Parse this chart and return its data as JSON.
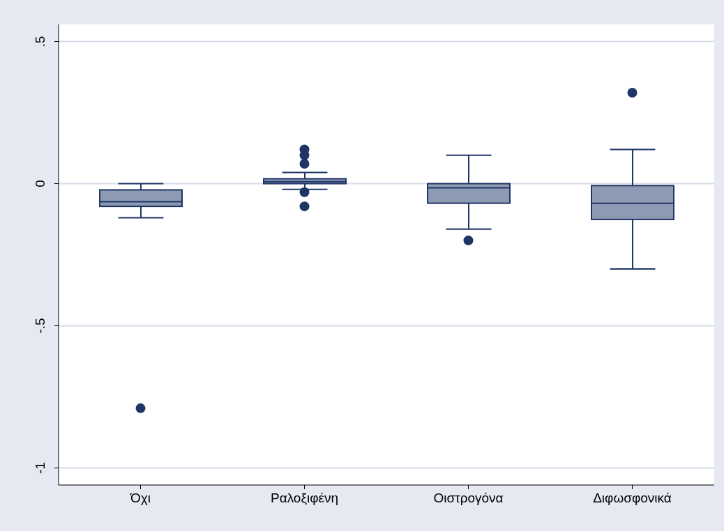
{
  "chart_data": {
    "type": "box",
    "categories": [
      "Όχι",
      "Ραλοξιφένη",
      "Οιστρογόνα",
      "Διφωσφονικά"
    ],
    "boxes": [
      {
        "low": -0.12,
        "q1": -0.08,
        "median": -0.064,
        "q3": -0.022,
        "high": 0,
        "outliers": [
          -0.79
        ]
      },
      {
        "low": -0.02,
        "q1": 0,
        "median": 0.007,
        "q3": 0.017,
        "high": 0.039,
        "outliers": [
          0.12,
          0.1,
          0.07,
          -0.03,
          -0.08
        ]
      },
      {
        "low": -0.16,
        "q1": -0.069,
        "median": -0.015,
        "q3": 0,
        "high": 0.1,
        "outliers": [
          -0.2
        ]
      },
      {
        "low": -0.3,
        "q1": -0.126,
        "median": -0.069,
        "q3": -0.007,
        "high": 0.12,
        "outliers": [
          0.32
        ]
      }
    ],
    "color": "#8e9ab4",
    "ylim": [
      -1.06,
      0.56
    ],
    "yticks": [
      {
        "value": -1,
        "label": "-1"
      },
      {
        "value": -0.5,
        "label": "-.5"
      },
      {
        "value": 0,
        "label": "0"
      },
      {
        "value": 0.5,
        "label": ".5"
      }
    ],
    "grid": "y"
  }
}
